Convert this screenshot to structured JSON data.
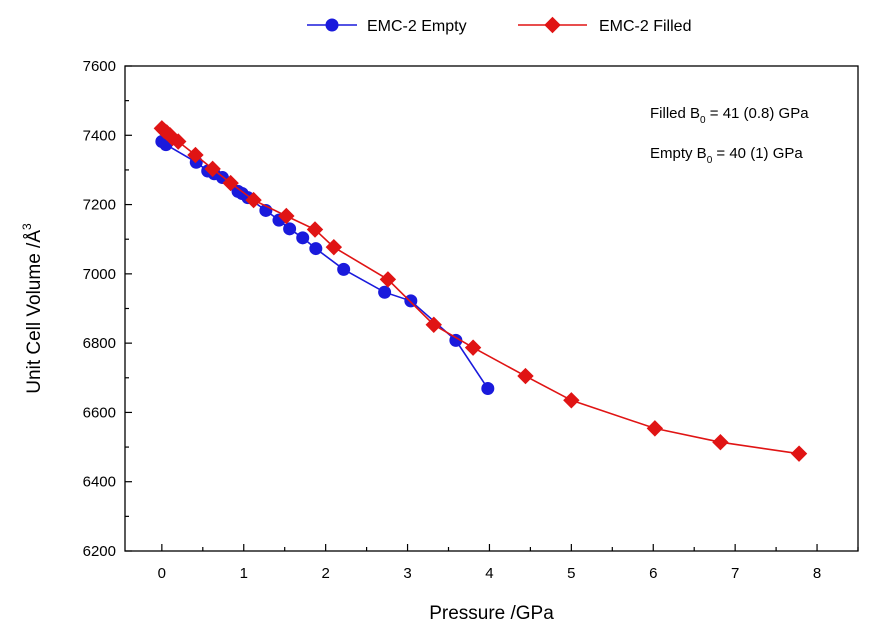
{
  "chart_data": {
    "type": "line",
    "title": "",
    "xlabel": "Pressure /GPa",
    "ylabel": "Unit Cell Volume /Å",
    "ylabel_superscript": "3",
    "xlim": [
      -0.45,
      8.5
    ],
    "ylim": [
      6200,
      7600
    ],
    "xticks": [
      0,
      1,
      2,
      3,
      4,
      5,
      6,
      7,
      8
    ],
    "yticks": [
      6200,
      6400,
      6600,
      6800,
      7000,
      7200,
      7400,
      7600
    ],
    "grid": false,
    "legend_position": "top-center",
    "annotations": [
      {
        "prefix": "Filled B",
        "sub": "0",
        "suffix": " = 41 (0.8) GPa"
      },
      {
        "prefix": "Empty B",
        "sub": "0",
        "suffix": " = 40 (1) GPa"
      }
    ],
    "series": [
      {
        "name": "EMC-2 Empty",
        "color": "#1a1adc",
        "marker": "circle",
        "x": [
          0.0,
          0.05,
          0.42,
          0.56,
          0.64,
          0.74,
          0.93,
          0.98,
          1.05,
          1.27,
          1.43,
          1.56,
          1.72,
          1.88,
          2.22,
          2.72,
          3.04,
          3.59,
          3.98
        ],
        "y": [
          7382,
          7373,
          7322,
          7297,
          7289,
          7278,
          7238,
          7232,
          7220,
          7183,
          7155,
          7130,
          7104,
          7073,
          7013,
          6947,
          6922,
          6808,
          6669
        ]
      },
      {
        "name": "EMC-2 Filled",
        "color": "#e01414",
        "marker": "diamond",
        "x": [
          0.0,
          0.03,
          0.06,
          0.1,
          0.13,
          0.2,
          0.41,
          0.62,
          0.84,
          1.12,
          1.52,
          1.87,
          2.1,
          2.76,
          3.32,
          3.8,
          4.44,
          5.0,
          6.02,
          6.82,
          7.78
        ],
        "y": [
          7420,
          7413,
          7408,
          7400,
          7392,
          7382,
          7343,
          7303,
          7262,
          7213,
          7167,
          7128,
          7077,
          6984,
          6853,
          6787,
          6705,
          6635,
          6554,
          6514,
          6481
        ]
      }
    ]
  }
}
